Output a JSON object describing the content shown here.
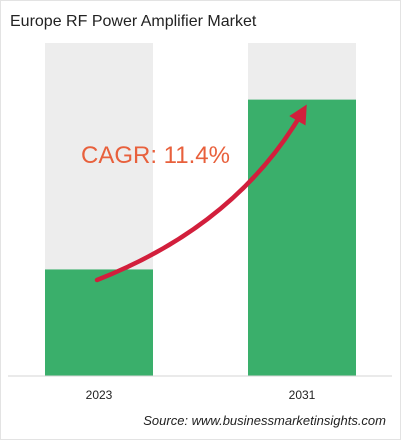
{
  "chart_data": {
    "type": "bar",
    "title": "Europe RF Power Amplifier Market",
    "categories": [
      "2023",
      "2031"
    ],
    "values": [
      0.32,
      0.83
    ],
    "value_scale": "fraction of bar height",
    "annotation": "CAGR: 11.4%",
    "grid": false,
    "legend": "none"
  },
  "colors": {
    "bar_fill": "#3aaf6b",
    "bar_background": "#ededed",
    "arrow": "#d21f3c",
    "cagr_text": "#e8603c"
  },
  "source": "Source: www.businessmarketinsights.com"
}
